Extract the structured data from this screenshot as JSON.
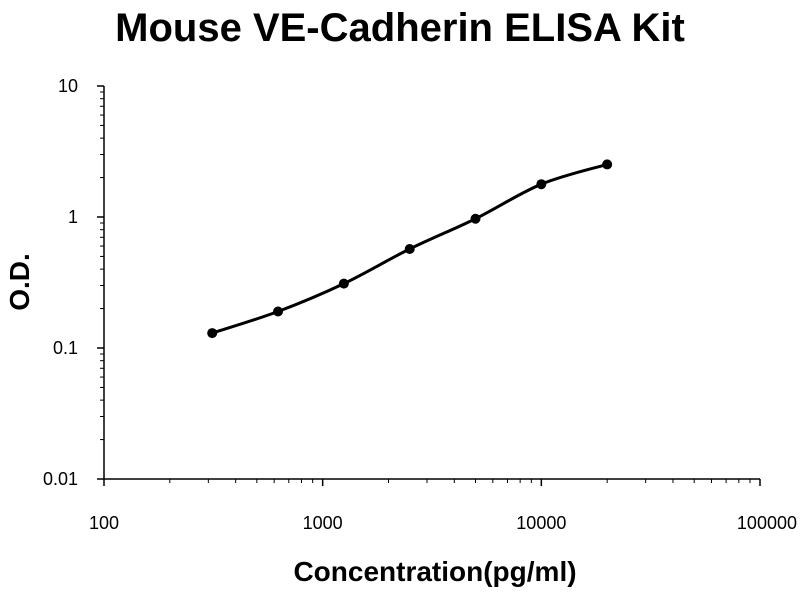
{
  "chart_data": {
    "type": "line",
    "title": "Mouse VE-Cadherin ELISA Kit",
    "xlabel": "Concentration(pg/ml)",
    "ylabel": "O.D.",
    "x_scale": "log",
    "y_scale": "log",
    "xlim": [
      100,
      100000
    ],
    "ylim": [
      0.01,
      10
    ],
    "x_ticks": [
      100,
      1000,
      10000,
      100000
    ],
    "x_tick_labels": [
      "100",
      "1000",
      "10000",
      "100000"
    ],
    "y_ticks": [
      0.01,
      0.1,
      1,
      10
    ],
    "y_tick_labels": [
      "0.01",
      "0.1",
      "1",
      "10"
    ],
    "grid": false,
    "legend": "none",
    "series": [
      {
        "x": [
          312.5,
          625,
          1250,
          2500,
          5000,
          10000,
          20000
        ],
        "y": [
          0.13,
          0.19,
          0.31,
          0.57,
          0.97,
          1.78,
          2.52
        ],
        "color": "#000000",
        "marker": "circle",
        "smooth": true
      }
    ]
  }
}
